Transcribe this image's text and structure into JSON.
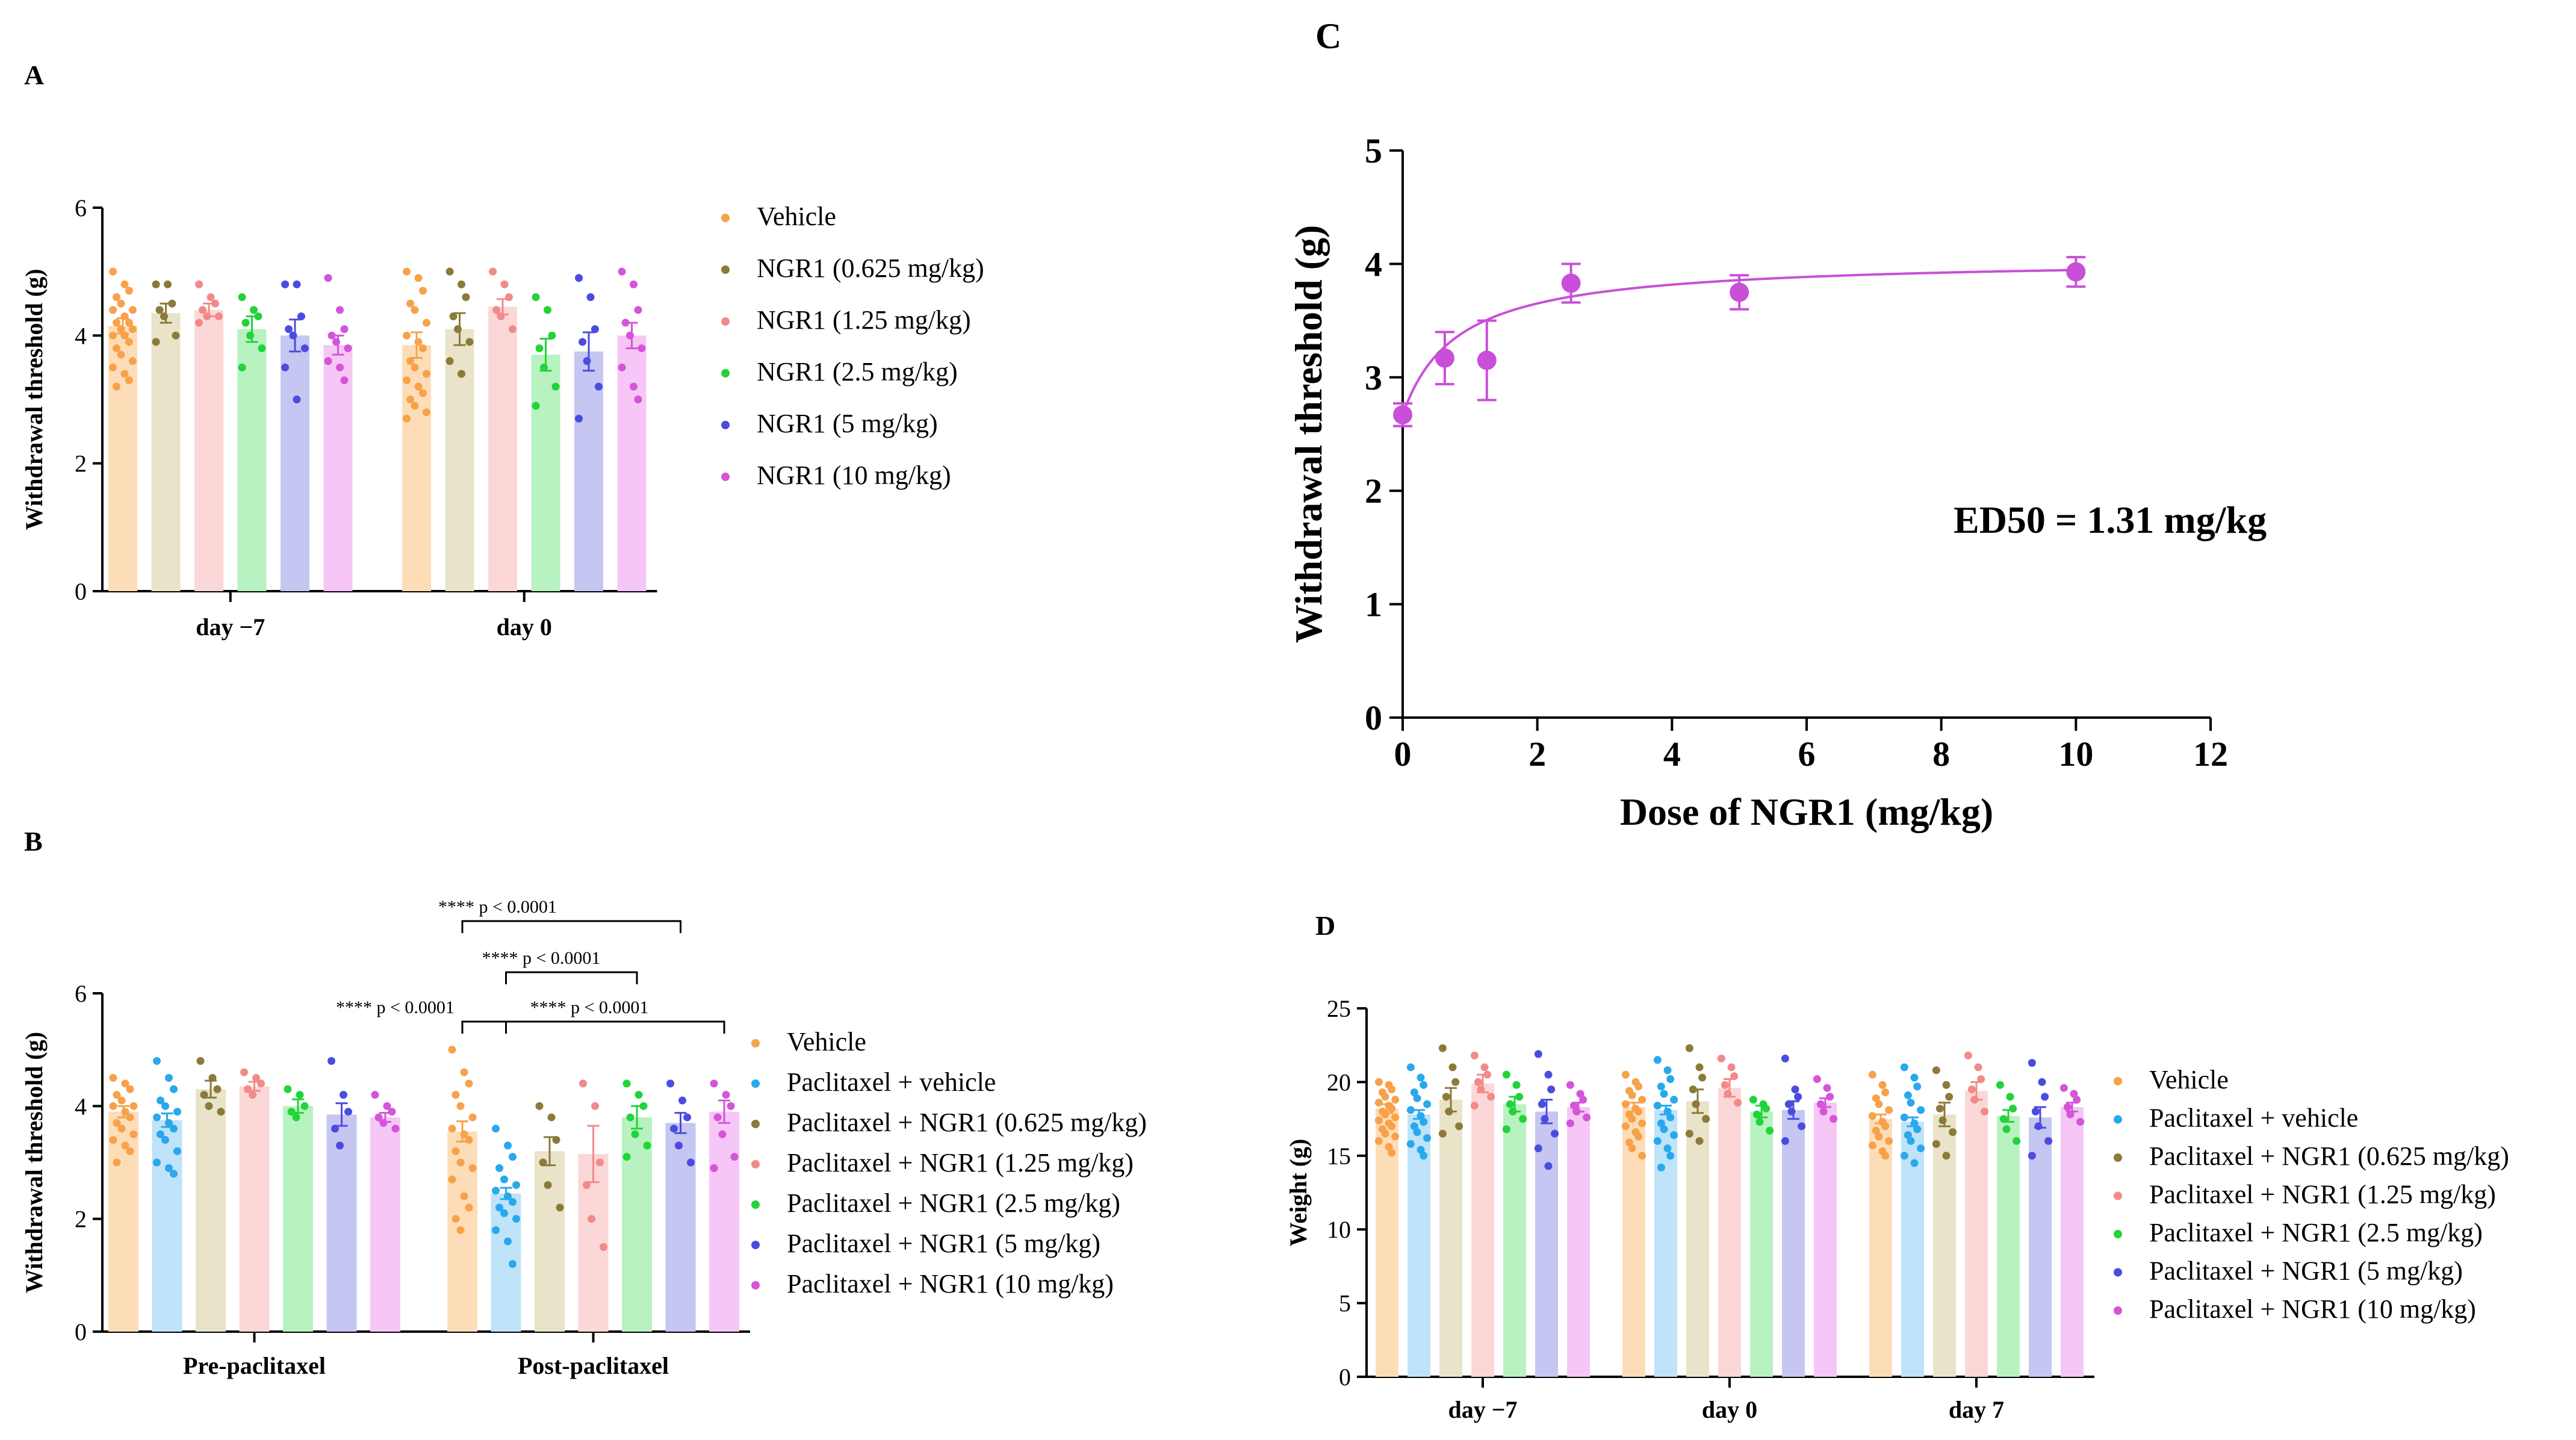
{
  "panels": {
    "A": "A",
    "B": "B",
    "C": "C",
    "D": "D"
  },
  "chart_data": [
    {
      "panel": "A",
      "type": "bar",
      "ylabel": "Withdrawal threshold (g)",
      "xlabel": "",
      "ylim": [
        0,
        6
      ],
      "yticks": [
        0,
        2,
        4,
        6
      ],
      "groups": [
        "day −7",
        "day 0"
      ],
      "legend": [
        "Vehicle",
        "NGR1 (0.625 mg/kg)",
        "NGR1 (1.25 mg/kg)",
        "NGR1 (2.5 mg/kg)",
        "NGR1 (5 mg/kg)",
        "NGR1 (10 mg/kg)"
      ],
      "colors": [
        "#F7A24B",
        "#8C7A3A",
        "#F28A8A",
        "#22D33A",
        "#4A4CE0",
        "#D455D8"
      ],
      "fills": [
        "#FDDDB8",
        "#E9E3C9",
        "#FCD7D7",
        "#B8F2C0",
        "#C6C6F2",
        "#F6C6F6"
      ],
      "means": [
        [
          4.15,
          4.35,
          4.4,
          4.1,
          4.0,
          3.85
        ],
        [
          3.85,
          4.1,
          4.45,
          3.7,
          3.75,
          4.0
        ]
      ],
      "sem": [
        [
          0.12,
          0.15,
          0.1,
          0.2,
          0.25,
          0.15
        ],
        [
          0.2,
          0.25,
          0.12,
          0.25,
          0.3,
          0.2
        ]
      ],
      "points": [
        [
          [
            5.0,
            4.8,
            4.7,
            4.6,
            4.5,
            4.4,
            4.4,
            4.3,
            4.2,
            4.2,
            4.1,
            4.1,
            4.0,
            4.0,
            3.9,
            3.8,
            3.7,
            3.6,
            3.5,
            3.4,
            3.3,
            3.2
          ],
          [
            4.8,
            4.8,
            4.5,
            4.4,
            4.3,
            4.0,
            3.9
          ],
          [
            4.8,
            4.6,
            4.5,
            4.4,
            4.3,
            4.3,
            4.2
          ],
          [
            4.6,
            4.4,
            4.3,
            4.2,
            4.0,
            3.8,
            3.5
          ],
          [
            4.8,
            4.8,
            4.3,
            4.1,
            4.0,
            3.8,
            3.5,
            3.0
          ],
          [
            4.9,
            4.4,
            4.1,
            4.0,
            3.9,
            3.8,
            3.6,
            3.5,
            3.3
          ]
        ],
        [
          [
            5.0,
            4.9,
            4.7,
            4.5,
            4.4,
            4.2,
            4.0,
            3.9,
            3.8,
            3.6,
            3.5,
            3.4,
            3.3,
            3.2,
            3.1,
            3.0,
            2.9,
            2.8,
            2.7
          ],
          [
            5.0,
            4.8,
            4.6,
            4.3,
            4.1,
            3.9,
            3.6,
            3.4
          ],
          [
            5.0,
            4.8,
            4.6,
            4.4,
            4.3,
            4.1
          ],
          [
            4.6,
            4.4,
            4.0,
            3.8,
            3.5,
            3.2,
            2.9
          ],
          [
            4.9,
            4.6,
            4.1,
            3.9,
            3.6,
            3.2,
            2.7
          ],
          [
            5.0,
            4.8,
            4.4,
            4.2,
            4.0,
            3.8,
            3.5,
            3.2,
            3.0
          ]
        ]
      ]
    },
    {
      "panel": "B",
      "type": "bar",
      "ylabel": "Withdrawal threshold (g)",
      "xlabel": "",
      "ylim": [
        0,
        6
      ],
      "yticks": [
        0,
        2,
        4,
        6
      ],
      "groups": [
        "Pre-paclitaxel",
        "Post-paclitaxel"
      ],
      "legend": [
        "Vehicle",
        "Paclitaxel + vehicle",
        "Paclitaxel + NGR1 (0.625 mg/kg)",
        "Paclitaxel + NGR1 (1.25 mg/kg)",
        "Paclitaxel + NGR1 (2.5 mg/kg)",
        "Paclitaxel + NGR1 (5 mg/kg)",
        "Paclitaxel + NGR1 (10 mg/kg)"
      ],
      "colors": [
        "#F7A24B",
        "#2AA8EC",
        "#8C7A3A",
        "#F28A8A",
        "#22D33A",
        "#4A4CE0",
        "#D455D8"
      ],
      "fills": [
        "#FDDDB8",
        "#BFE3F8",
        "#E9E3C9",
        "#FCD7D7",
        "#B8F2C0",
        "#C6C6F2",
        "#F6C6F6"
      ],
      "means": [
        [
          3.9,
          3.75,
          4.3,
          4.35,
          4.0,
          3.85,
          3.8
        ],
        [
          3.55,
          2.45,
          3.2,
          3.15,
          3.8,
          3.7,
          3.9
        ]
      ],
      "sem": [
        [
          0.1,
          0.12,
          0.15,
          0.08,
          0.12,
          0.2,
          0.08
        ],
        [
          0.18,
          0.1,
          0.25,
          0.5,
          0.2,
          0.18,
          0.2
        ]
      ],
      "points": [
        [
          [
            4.5,
            4.4,
            4.3,
            4.2,
            4.1,
            4.0,
            4.0,
            3.9,
            3.8,
            3.7,
            3.6,
            3.5,
            3.4,
            3.3,
            3.2,
            3.0
          ],
          [
            4.8,
            4.5,
            4.3,
            4.1,
            4.0,
            3.9,
            3.8,
            3.7,
            3.6,
            3.5,
            3.4,
            3.2,
            3.0,
            2.9,
            2.8
          ],
          [
            4.8,
            4.5,
            4.3,
            4.2,
            4.0,
            3.9
          ],
          [
            4.6,
            4.5,
            4.4,
            4.3,
            4.2
          ],
          [
            4.3,
            4.2,
            4.0,
            3.9,
            3.8
          ],
          [
            4.8,
            4.2,
            3.9,
            3.6,
            3.3
          ],
          [
            4.2,
            4.0,
            3.9,
            3.8,
            3.7,
            3.6
          ]
        ],
        [
          [
            5.0,
            4.6,
            4.4,
            4.2,
            4.0,
            3.8,
            3.6,
            3.5,
            3.4,
            3.2,
            3.0,
            2.9,
            2.7,
            2.4,
            2.2,
            2.0,
            1.8
          ],
          [
            3.6,
            3.3,
            3.1,
            2.9,
            2.7,
            2.6,
            2.5,
            2.4,
            2.3,
            2.2,
            2.1,
            2.0,
            1.8,
            1.6,
            1.2
          ],
          [
            4.0,
            3.8,
            3.4,
            3.0,
            2.6,
            2.2
          ],
          [
            4.4,
            4.0,
            3.0,
            2.6,
            2.0,
            1.5
          ],
          [
            4.4,
            4.2,
            4.0,
            3.8,
            3.5,
            3.3,
            3.1
          ],
          [
            4.4,
            4.1,
            3.8,
            3.6,
            3.3,
            3.0
          ],
          [
            4.4,
            4.2,
            4.0,
            3.8,
            3.5,
            3.1,
            2.9
          ]
        ]
      ],
      "annotations": [
        {
          "label": "****  p < 0.0001",
          "from": [
            1,
            0
          ],
          "to": [
            1,
            5
          ],
          "level": 3
        },
        {
          "label": "****  p < 0.0001",
          "from": [
            1,
            1
          ],
          "to": [
            1,
            4
          ],
          "level": 2
        },
        {
          "label": "****  p < 0.0001",
          "from": [
            1,
            0
          ],
          "to": [
            1,
            1
          ],
          "level": 1
        },
        {
          "label": "****  p < 0.0001",
          "from": [
            1,
            1
          ],
          "to": [
            1,
            6
          ],
          "level": 1
        }
      ]
    },
    {
      "panel": "C",
      "type": "scatter",
      "ylabel": "Withdrawal threshold (g)",
      "xlabel": "Dose of NGR1 (mg/kg)",
      "xlim": [
        0,
        12
      ],
      "ylim": [
        0,
        5
      ],
      "xticks": [
        0,
        2,
        4,
        6,
        8,
        10,
        12
      ],
      "yticks": [
        0,
        1,
        2,
        3,
        4,
        5
      ],
      "color": "#C94FD8",
      "x": [
        0,
        0.625,
        1.25,
        2.5,
        5,
        10
      ],
      "y": [
        2.67,
        3.17,
        3.15,
        3.83,
        3.75,
        3.93
      ],
      "err": [
        0.1,
        0.23,
        0.35,
        0.17,
        0.15,
        0.13
      ],
      "fit": {
        "bottom": 2.67,
        "top": 4.05,
        "ed50": 1.31
      },
      "annotation": "ED50 = 1.31 mg/kg"
    },
    {
      "panel": "D",
      "type": "bar",
      "ylabel": "Weight (g)",
      "xlabel": "",
      "ylim": [
        0,
        25
      ],
      "yticks": [
        0,
        5,
        10,
        15,
        20,
        25
      ],
      "groups": [
        "day −7",
        "day 0",
        "day 7"
      ],
      "legend": [
        "Vehicle",
        "Paclitaxel + vehicle",
        "Paclitaxel + NGR1 (0.625 mg/kg)",
        "Paclitaxel + NGR1 (1.25 mg/kg)",
        "Paclitaxel + NGR1 (2.5 mg/kg)",
        "Paclitaxel + NGR1 (5 mg/kg)",
        "Paclitaxel + NGR1 (10 mg/kg)"
      ],
      "colors": [
        "#F7A24B",
        "#2AA8EC",
        "#8C7A3A",
        "#F28A8A",
        "#22D33A",
        "#4A4CE0",
        "#D455D8"
      ],
      "fills": [
        "#FDDDB8",
        "#BFE3F8",
        "#E9E3C9",
        "#FCD7D7",
        "#B8F2C0",
        "#C6C6F2",
        "#F6C6F6"
      ],
      "means": [
        [
          18.2,
          17.8,
          18.8,
          19.9,
          18.5,
          18.0,
          18.3
        ],
        [
          18.3,
          18.1,
          18.7,
          19.6,
          18.0,
          18.1,
          18.6
        ],
        [
          17.5,
          17.3,
          17.8,
          19.4,
          17.7,
          17.6,
          18.3
        ]
      ],
      "sem": [
        [
          0.3,
          0.3,
          0.8,
          0.6,
          0.5,
          0.8,
          0.3
        ],
        [
          0.3,
          0.3,
          0.8,
          0.6,
          0.4,
          0.6,
          0.3
        ],
        [
          0.3,
          0.3,
          0.8,
          0.6,
          0.4,
          0.7,
          0.3
        ]
      ],
      "points": [
        [
          [
            20.0,
            19.8,
            19.5,
            19.3,
            19.0,
            18.8,
            18.6,
            18.4,
            18.2,
            18.0,
            17.8,
            17.6,
            17.4,
            17.2,
            17.0,
            16.8,
            16.5,
            16.3,
            16.0,
            15.6,
            15.2
          ],
          [
            21.0,
            20.3,
            19.8,
            19.3,
            18.9,
            18.5,
            18.1,
            17.7,
            17.3,
            17.0,
            16.6,
            16.2,
            15.8,
            15.4,
            15.0
          ],
          [
            22.3,
            21.0,
            20.0,
            19.0,
            18.0,
            17.0,
            16.5
          ],
          [
            21.8,
            21.0,
            20.5,
            20.0,
            19.5,
            19.0,
            18.4
          ],
          [
            20.5,
            19.8,
            19.0,
            18.5,
            18.0,
            17.5,
            16.8
          ],
          [
            21.9,
            20.5,
            19.5,
            18.5,
            17.5,
            16.5,
            15.5,
            14.3
          ],
          [
            19.8,
            19.2,
            18.8,
            18.4,
            18.0,
            17.6,
            17.2
          ]
        ],
        [
          [
            20.5,
            20.0,
            19.7,
            19.4,
            19.1,
            18.8,
            18.5,
            18.2,
            18.0,
            17.8,
            17.5,
            17.2,
            17.0,
            16.6,
            16.3,
            15.9,
            15.5,
            15.0
          ],
          [
            21.5,
            20.8,
            20.2,
            19.7,
            19.2,
            18.8,
            18.4,
            18.0,
            17.6,
            17.2,
            16.8,
            16.4,
            16.0,
            15.5,
            15.0,
            14.2
          ],
          [
            22.3,
            21.0,
            20.3,
            19.5,
            18.5,
            17.5,
            16.5,
            16.0
          ],
          [
            21.6,
            21.0,
            20.4,
            19.8,
            19.2,
            18.6
          ],
          [
            18.8,
            18.5,
            18.2,
            17.8,
            17.3,
            16.7
          ],
          [
            21.6,
            19.5,
            19.0,
            18.5,
            18.0,
            17.0,
            16.0
          ],
          [
            20.2,
            19.6,
            19.0,
            18.5,
            18.0,
            17.5
          ]
        ],
        [
          [
            20.5,
            19.8,
            19.3,
            18.9,
            18.5,
            18.1,
            17.7,
            17.3,
            17.0,
            16.7,
            16.3,
            16.0,
            15.7,
            15.3,
            15.0
          ],
          [
            21.0,
            20.3,
            19.7,
            19.1,
            18.6,
            18.1,
            17.6,
            17.2,
            16.8,
            16.4,
            16.0,
            15.5,
            15.0,
            14.5
          ],
          [
            20.8,
            19.8,
            19.0,
            18.2,
            17.4,
            16.6,
            15.8,
            15.0
          ],
          [
            21.8,
            21.0,
            20.2,
            19.5,
            18.8,
            18.0
          ],
          [
            19.8,
            19.0,
            18.2,
            17.5,
            16.8,
            16.0
          ],
          [
            21.3,
            20.0,
            19.0,
            18.0,
            17.0,
            16.0,
            15.0
          ],
          [
            19.6,
            19.2,
            18.8,
            18.3,
            17.8,
            17.3
          ]
        ]
      ]
    }
  ]
}
